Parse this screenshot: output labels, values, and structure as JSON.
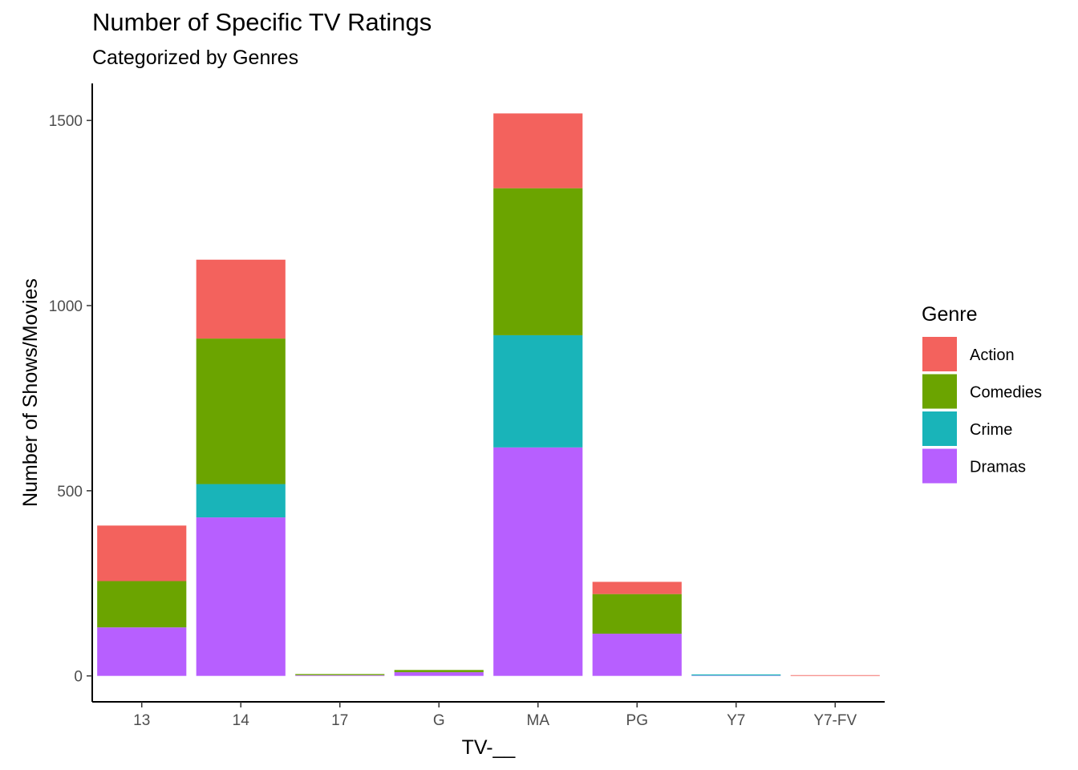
{
  "chart_data": {
    "type": "bar",
    "stacked": true,
    "title": "Number of Specific TV Ratings",
    "subtitle": "Categorized by Genres",
    "xlabel": "TV-__",
    "ylabel": "Number of Shows/Movies",
    "categories": [
      "13",
      "14",
      "17",
      "G",
      "MA",
      "PG",
      "Y7",
      "Y7-FV"
    ],
    "ylim": [
      -70,
      1600
    ],
    "yticks": [
      0,
      500,
      1000,
      1500
    ],
    "legend": {
      "title": "Genre",
      "position": "right"
    },
    "grid": false,
    "series": [
      {
        "name": "Dramas",
        "color": "#B75FFF",
        "values": [
          131,
          428,
          2,
          10,
          617,
          114,
          1,
          0
        ]
      },
      {
        "name": "Crime",
        "color": "#19B4B9",
        "values": [
          0,
          90,
          0,
          0,
          303,
          0,
          3,
          0
        ]
      },
      {
        "name": "Comedies",
        "color": "#6BA400",
        "values": [
          125,
          393,
          3,
          6,
          397,
          107,
          0,
          0
        ]
      },
      {
        "name": "Action",
        "color": "#F3625D",
        "values": [
          150,
          213,
          0,
          0,
          202,
          33,
          0,
          2
        ]
      }
    ]
  }
}
